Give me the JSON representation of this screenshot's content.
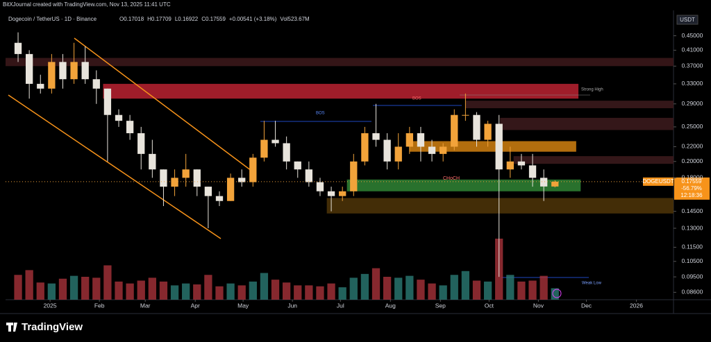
{
  "header": {
    "credit": "BitXJournal created with TradingView.com, Nov 13, 2025 11:41 UTC",
    "symbol": "Dogecoin / TetherUS · 1D · Binance",
    "ohlc": [
      "O0.17018",
      "H0.17709",
      "L0.16922",
      "C0.17559",
      "+0.00541 (+3.18%)",
      "Vol523.67M"
    ]
  },
  "currency": "USDT",
  "brand": "TradingView",
  "price_tag": {
    "symbol": "DOGEUSDT",
    "price": "0.17559",
    "change": "-56.79%",
    "countdown": "12:18:36"
  },
  "annotations": [
    "BOS",
    "BOS",
    "CHoCH",
    "Strong High",
    "Weak Low"
  ],
  "chart_data": {
    "type": "candlestick",
    "log_scale": true,
    "categories": [
      null,
      null,
      null,
      null,
      null,
      null,
      null,
      null,
      null,
      null,
      null,
      null,
      null,
      null,
      null,
      null,
      null,
      null,
      null,
      null,
      null,
      null,
      null,
      null,
      null,
      null,
      null,
      null,
      null,
      null,
      null,
      null,
      null,
      null,
      null,
      null,
      null,
      null,
      null,
      null,
      null,
      null,
      null,
      null,
      null,
      null,
      null,
      null,
      null
    ],
    "open": [
      0.43,
      0.4,
      0.33,
      0.32,
      0.38,
      0.34,
      0.38,
      0.34,
      0.32,
      0.27,
      0.26,
      0.24,
      0.21,
      0.19,
      0.17,
      0.18,
      0.19,
      0.17,
      0.16,
      0.155,
      0.18,
      0.175,
      0.205,
      0.23,
      0.225,
      0.2,
      0.19,
      0.175,
      0.165,
      0.16,
      0.165,
      0.2,
      0.24,
      0.23,
      0.2,
      0.22,
      0.24,
      0.22,
      0.21,
      0.22,
      0.27,
      0.27,
      0.23,
      0.255,
      0.19,
      0.2,
      0.195,
      0.18,
      0.17018
    ],
    "high": [
      0.46,
      0.41,
      0.35,
      0.4,
      0.4,
      0.43,
      0.42,
      0.36,
      0.32,
      0.28,
      0.27,
      0.25,
      0.23,
      0.19,
      0.19,
      0.21,
      0.19,
      0.17,
      0.165,
      0.185,
      0.19,
      0.21,
      0.26,
      0.26,
      0.235,
      0.2,
      0.2,
      0.18,
      0.17,
      0.17,
      0.21,
      0.25,
      0.29,
      0.24,
      0.24,
      0.25,
      0.25,
      0.23,
      0.225,
      0.28,
      0.31,
      0.275,
      0.26,
      0.27,
      0.22,
      0.21,
      0.21,
      0.19,
      0.17709
    ],
    "low": [
      0.38,
      0.3,
      0.31,
      0.31,
      0.32,
      0.33,
      0.33,
      0.29,
      0.2,
      0.25,
      0.23,
      0.19,
      0.18,
      0.15,
      0.16,
      0.17,
      0.16,
      0.13,
      0.15,
      0.155,
      0.17,
      0.17,
      0.2,
      0.22,
      0.19,
      0.18,
      0.17,
      0.16,
      0.145,
      0.155,
      0.16,
      0.195,
      0.22,
      0.19,
      0.19,
      0.21,
      0.2,
      0.2,
      0.2,
      0.215,
      0.26,
      0.22,
      0.22,
      0.095,
      0.18,
      0.19,
      0.17,
      0.155,
      0.16922
    ],
    "close": [
      0.4,
      0.33,
      0.32,
      0.38,
      0.34,
      0.38,
      0.34,
      0.32,
      0.27,
      0.26,
      0.24,
      0.21,
      0.19,
      0.17,
      0.18,
      0.19,
      0.17,
      0.16,
      0.155,
      0.18,
      0.175,
      0.205,
      0.23,
      0.225,
      0.2,
      0.19,
      0.175,
      0.165,
      0.16,
      0.165,
      0.2,
      0.24,
      0.23,
      0.2,
      0.22,
      0.24,
      0.22,
      0.21,
      0.22,
      0.27,
      0.27,
      0.23,
      0.255,
      0.19,
      0.2,
      0.195,
      0.18,
      0.17018,
      0.17559
    ],
    "volume": [
      2600,
      3100,
      1800,
      1700,
      2200,
      2500,
      2400,
      2300,
      3600,
      1900,
      1700,
      2000,
      2300,
      1900,
      1500,
      1700,
      1600,
      2600,
      1400,
      1700,
      1500,
      1900,
      2800,
      2100,
      1800,
      1500,
      1500,
      1400,
      1700,
      1300,
      2300,
      2700,
      3300,
      2400,
      2300,
      2500,
      2100,
      1700,
      1500,
      2600,
      3000,
      2000,
      1900,
      6400,
      2600,
      1900,
      2000,
      2500,
      1200
    ],
    "volume_ylim": [
      0,
      8000
    ],
    "up_color": "#f2a33a",
    "down_color": "#e8e4dc",
    "volume_up_color": "#2a7a74",
    "volume_down_color": "#a8323a",
    "xlim": [
      -1.12,
      58.6
    ],
    "xticks": [
      {
        "value": 2.86,
        "label": "2025"
      },
      {
        "value": 7.27,
        "label": "Feb"
      },
      {
        "value": 11.37,
        "label": "Mar"
      },
      {
        "value": 15.84,
        "label": "Apr"
      },
      {
        "value": 20.12,
        "label": "May"
      },
      {
        "value": 24.53,
        "label": "Jun"
      },
      {
        "value": 28.82,
        "label": "Jul"
      },
      {
        "value": 33.29,
        "label": "Aug"
      },
      {
        "value": 37.76,
        "label": "Sep"
      },
      {
        "value": 42.11,
        "label": "Oct"
      },
      {
        "value": 46.52,
        "label": "Nov"
      },
      {
        "value": 50.81,
        "label": "Dec"
      },
      {
        "value": 55.28,
        "label": "2026"
      }
    ],
    "ylim": [
      0.082,
      0.53
    ],
    "yticks": [
      {
        "value": 0.45,
        "label": "0.45000"
      },
      {
        "value": 0.41,
        "label": "0.41000"
      },
      {
        "value": 0.37,
        "label": "0.37000"
      },
      {
        "value": 0.33,
        "label": "0.33000"
      },
      {
        "value": 0.29,
        "label": "0.29000"
      },
      {
        "value": 0.25,
        "label": "0.25000"
      },
      {
        "value": 0.22,
        "label": "0.22000"
      },
      {
        "value": 0.2,
        "label": "0.20000"
      },
      {
        "value": 0.18,
        "label": "0.18000"
      },
      {
        "value": 0.145,
        "label": "0.14500"
      },
      {
        "value": 0.13,
        "label": "0.13000"
      },
      {
        "value": 0.115,
        "label": "0.11500"
      },
      {
        "value": 0.105,
        "label": "0.10500"
      },
      {
        "value": 0.095,
        "label": "0.09500"
      },
      {
        "value": 0.086,
        "label": "0.08600"
      }
    ],
    "zones": [
      {
        "range": [
          0.37,
          0.39
        ],
        "start": -1.12,
        "end": 58.6,
        "color": "#3a1719"
      },
      {
        "range": [
          0.3,
          0.33
        ],
        "start": 7.6,
        "end": 50.1,
        "color": "#b0202f"
      },
      {
        "range": [
          0.282,
          0.296
        ],
        "start": 40.0,
        "end": 58.6,
        "color": "#3a1a1c"
      },
      {
        "range": [
          0.245,
          0.265
        ],
        "start": 43.1,
        "end": 58.6,
        "color": "#3a1a1c"
      },
      {
        "range": [
          0.213,
          0.228
        ],
        "start": 35.0,
        "end": 49.9,
        "color": "#c77a10"
      },
      {
        "range": [
          0.197,
          0.207
        ],
        "start": 44.3,
        "end": 58.6,
        "color": "#3a1a1c"
      },
      {
        "range": [
          0.165,
          0.178
        ],
        "start": 29.4,
        "end": 50.3,
        "color": "#2e7d32"
      },
      {
        "range": [
          0.143,
          0.158
        ],
        "start": 27.6,
        "end": 58.6,
        "color": "#4a3208"
      }
    ]
  }
}
